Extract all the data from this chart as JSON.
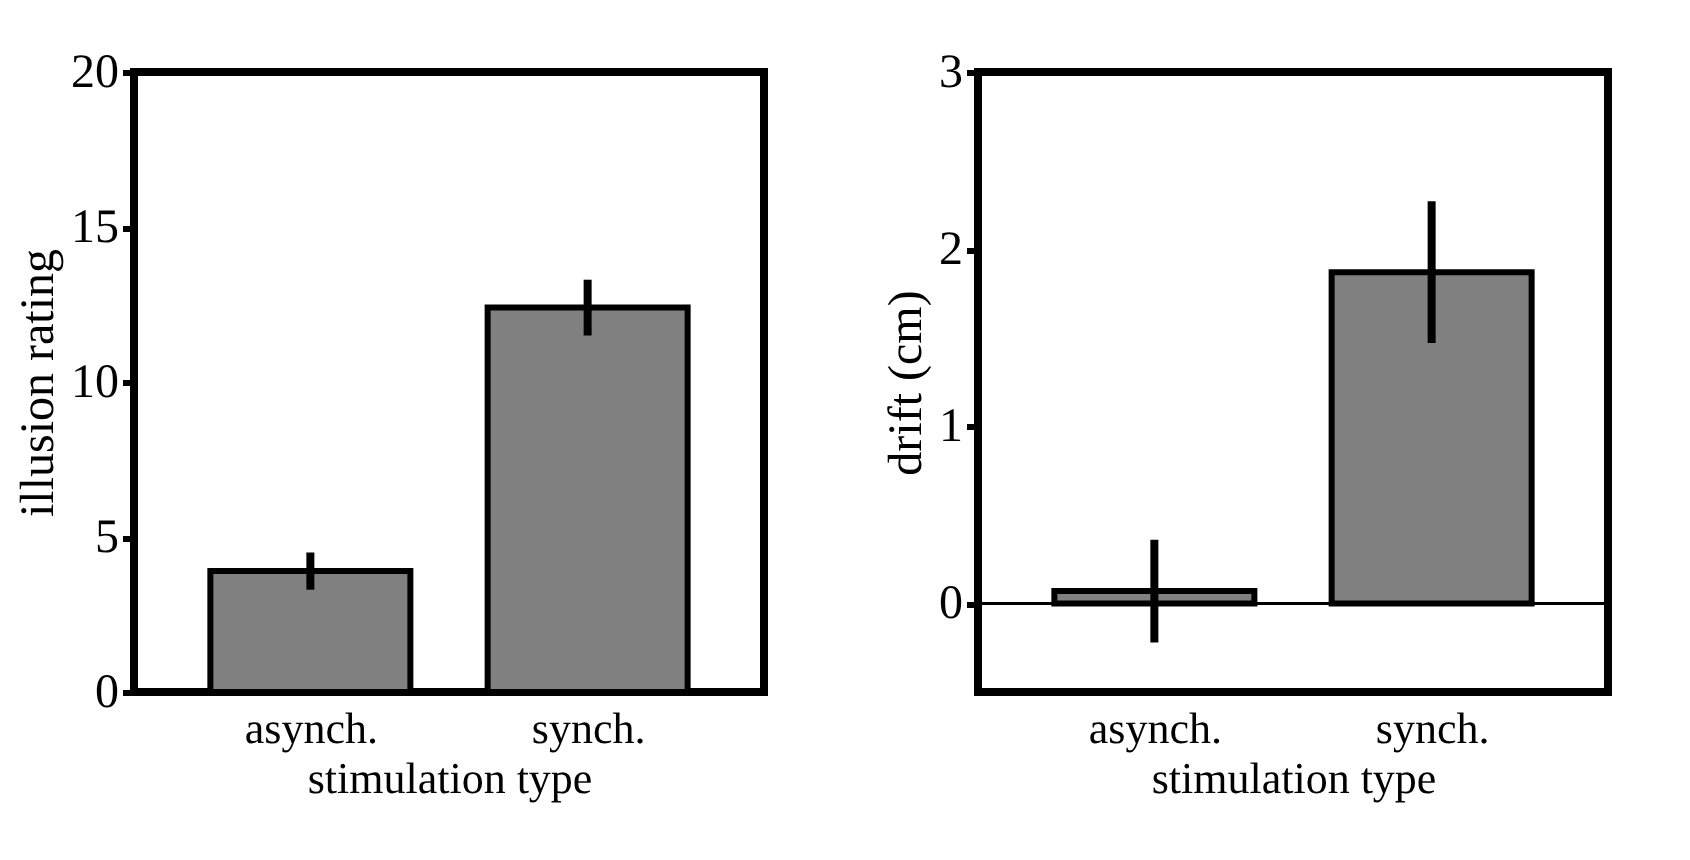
{
  "chart_data": [
    {
      "type": "bar",
      "ylabel": "illusion rating",
      "xlabel": "stimulation type",
      "categories": [
        "asynch.",
        "synch."
      ],
      "values": [
        3.9,
        12.4
      ],
      "errors": [
        0.6,
        0.9
      ],
      "color": "#808080",
      "ylim": [
        0,
        20
      ],
      "yticks": [
        0,
        5,
        10,
        15,
        20
      ],
      "grid": false
    },
    {
      "type": "bar",
      "ylabel": "drift (cm)",
      "xlabel": "stimulation type",
      "categories": [
        "asynch.",
        "synch."
      ],
      "values": [
        0.07,
        1.87
      ],
      "errors": [
        0.29,
        0.4
      ],
      "color": "#808080",
      "ylim": [
        -0.5,
        3
      ],
      "yticks": [
        0,
        1,
        2,
        3
      ],
      "grid": false,
      "ref_lines": [
        {
          "axis": "y",
          "value": 0,
          "color": "#000000"
        }
      ]
    }
  ]
}
